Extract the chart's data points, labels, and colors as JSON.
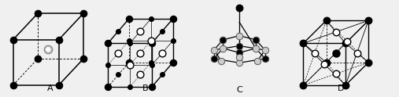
{
  "bg_color": "#f0f0f0",
  "label_A": "A",
  "label_B": "B",
  "label_C": "C",
  "label_D": "D",
  "label_fontsize": 8,
  "figsize": [
    5.07,
    1.24
  ],
  "dpi": 100
}
